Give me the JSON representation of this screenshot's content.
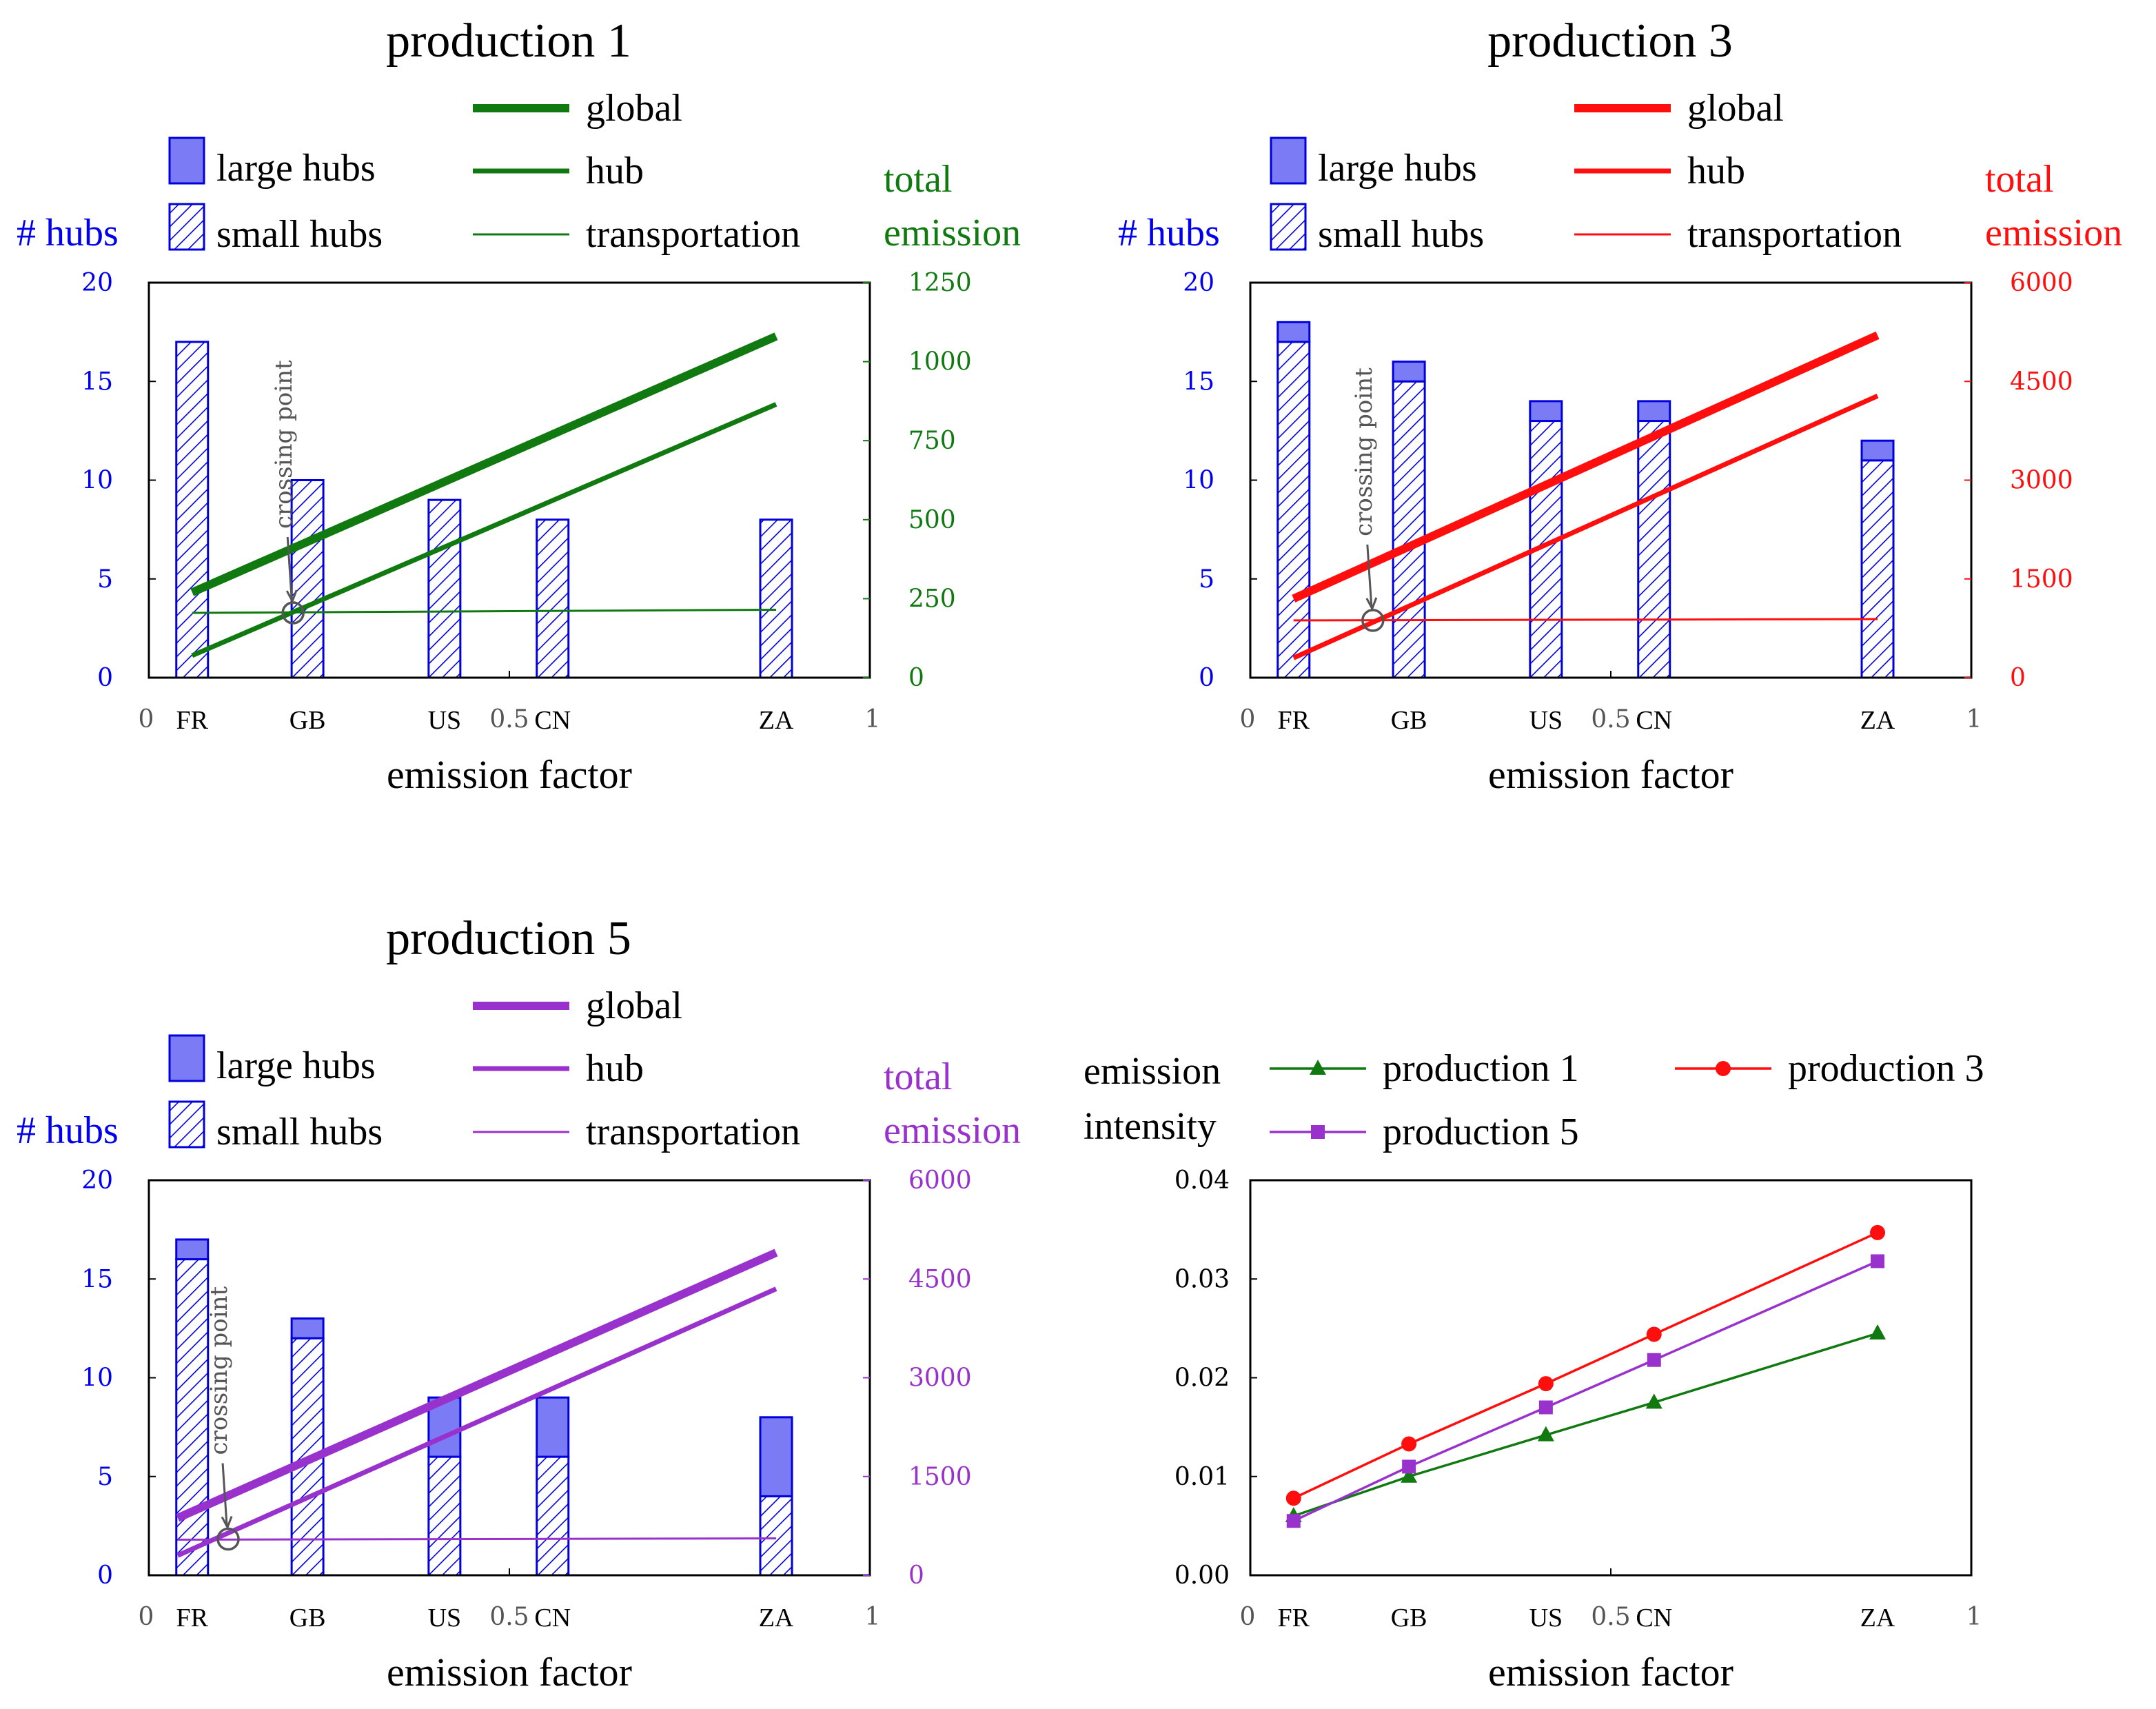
{
  "colors": {
    "hubs_axis": "#0000ee",
    "bar_fill": "#7b7bf5",
    "bar_stroke": "#0000dd",
    "p1": "#107a10",
    "p3": "#ff0e0e",
    "p5": "#9932cc",
    "crossing": "#555555"
  },
  "shared": {
    "xlabel": "emission factor",
    "x_axis_ticks": [
      "0",
      "0.5",
      "1"
    ],
    "countries": [
      "FR",
      "GB",
      "US",
      "CN",
      "ZA"
    ],
    "country_x": [
      0.06,
      0.22,
      0.41,
      0.56,
      0.87
    ],
    "left_axis_title": "# hubs",
    "right_axis_title": [
      "total",
      "emission"
    ],
    "legend_large": "large hubs",
    "legend_small": "small hubs",
    "legend_global": "global",
    "legend_hub": "hub",
    "legend_transport": "transportation",
    "crossing_label": "crossing point",
    "hubs_ticks": [
      "0",
      "5",
      "10",
      "15",
      "20"
    ],
    "hubs_range": [
      0,
      20
    ]
  },
  "chart_data": [
    {
      "type": "bar",
      "title": "production 1",
      "color_key": "p1",
      "xlabel": "emission factor",
      "ylabel_left": "# hubs",
      "ylabel_right": "total emission",
      "categories": [
        "FR",
        "GB",
        "US",
        "CN",
        "ZA"
      ],
      "x": [
        0.06,
        0.22,
        0.41,
        0.56,
        0.87
      ],
      "series": [
        {
          "name": "small hubs",
          "values": [
            17,
            10,
            9,
            8,
            8
          ]
        },
        {
          "name": "large hubs",
          "values": [
            0,
            0,
            0,
            0,
            0
          ]
        }
      ],
      "right_range": [
        0,
        1250
      ],
      "right_ticks": [
        "0",
        "250",
        "500",
        "750",
        "1000",
        "1250"
      ],
      "lines": [
        {
          "name": "global",
          "x": [
            0.06,
            0.87
          ],
          "y": [
            270,
            1080
          ]
        },
        {
          "name": "hub",
          "x": [
            0.06,
            0.87
          ],
          "y": [
            70,
            865
          ]
        },
        {
          "name": "transportation",
          "x": [
            0.06,
            0.87
          ],
          "y": [
            205,
            215
          ]
        }
      ],
      "crossing": {
        "x": 0.2,
        "y": 205
      }
    },
    {
      "type": "bar",
      "title": "production 3",
      "color_key": "p3",
      "xlabel": "emission factor",
      "ylabel_left": "# hubs",
      "ylabel_right": "total emission",
      "categories": [
        "FR",
        "GB",
        "US",
        "CN",
        "ZA"
      ],
      "x": [
        0.06,
        0.22,
        0.41,
        0.56,
        0.87
      ],
      "series": [
        {
          "name": "small hubs",
          "values": [
            17,
            15,
            13,
            13,
            11
          ]
        },
        {
          "name": "large hubs",
          "values": [
            1,
            1,
            1,
            1,
            1
          ]
        }
      ],
      "right_range": [
        0,
        6000
      ],
      "right_ticks": [
        "0",
        "1500",
        "3000",
        "4500",
        "6000"
      ],
      "lines": [
        {
          "name": "global",
          "x": [
            0.06,
            0.87
          ],
          "y": [
            1200,
            5200
          ]
        },
        {
          "name": "hub",
          "x": [
            0.06,
            0.87
          ],
          "y": [
            300,
            4280
          ]
        },
        {
          "name": "transportation",
          "x": [
            0.06,
            0.87
          ],
          "y": [
            870,
            890
          ]
        }
      ],
      "crossing": {
        "x": 0.17,
        "y": 870
      }
    },
    {
      "type": "bar",
      "title": "production 5",
      "color_key": "p5",
      "xlabel": "emission factor",
      "ylabel_left": "# hubs",
      "ylabel_right": "total emission",
      "categories": [
        "FR",
        "GB",
        "US",
        "CN",
        "ZA"
      ],
      "x": [
        0.06,
        0.22,
        0.41,
        0.56,
        0.87
      ],
      "series": [
        {
          "name": "small hubs",
          "values": [
            16,
            12,
            6,
            6,
            4
          ]
        },
        {
          "name": "large hubs",
          "values": [
            1,
            1,
            3,
            3,
            4
          ]
        }
      ],
      "right_range": [
        0,
        6000
      ],
      "right_ticks": [
        "0",
        "1500",
        "3000",
        "4500",
        "6000"
      ],
      "lines": [
        {
          "name": "global",
          "x": [
            0.04,
            0.87
          ],
          "y": [
            870,
            4900
          ]
        },
        {
          "name": "hub",
          "x": [
            0.04,
            0.87
          ],
          "y": [
            300,
            4350
          ]
        },
        {
          "name": "transportation",
          "x": [
            0.04,
            0.87
          ],
          "y": [
            540,
            560
          ]
        }
      ],
      "crossing": {
        "x": 0.11,
        "y": 550
      }
    },
    {
      "type": "line",
      "title": "",
      "xlabel": "emission factor",
      "ylabel": [
        "emission",
        "intensity"
      ],
      "categories": [
        "FR",
        "GB",
        "US",
        "CN",
        "ZA"
      ],
      "x": [
        0.06,
        0.22,
        0.41,
        0.56,
        0.87
      ],
      "ylim": [
        0,
        0.04
      ],
      "y_ticks": [
        "0.00",
        "0.01",
        "0.02",
        "0.03",
        "0.04"
      ],
      "series": [
        {
          "name": "production 1",
          "color_key": "p1",
          "marker": "triangle",
          "values": [
            0.006,
            0.01,
            0.0142,
            0.0175,
            0.0245
          ]
        },
        {
          "name": "production 3",
          "color_key": "p3",
          "marker": "circle",
          "values": [
            0.0078,
            0.0133,
            0.0194,
            0.0244,
            0.0347
          ]
        },
        {
          "name": "production 5",
          "color_key": "p5",
          "marker": "square",
          "values": [
            0.0055,
            0.011,
            0.017,
            0.0218,
            0.0318
          ]
        }
      ]
    }
  ]
}
